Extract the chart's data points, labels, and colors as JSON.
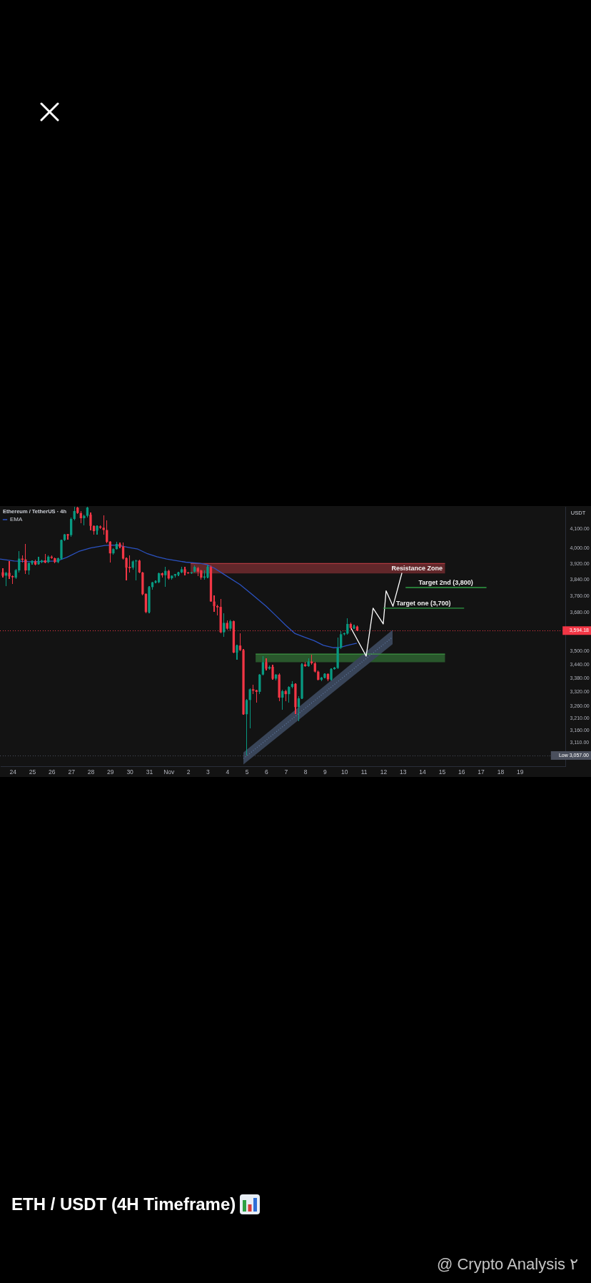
{
  "chart_data": {
    "type": "candlestick",
    "title": "ETH / USDT (4H Timeframe)",
    "subtitle": "Ethereum / TetherUS · 4h",
    "ylabel": "USDT",
    "x": [
      "--10-23T12:00",
      "--10-23T16:00",
      "--10-23T20:00",
      "--10-24T00:00",
      "--10-24T04:00",
      "--10-24T08:00",
      "--10-24T12:00",
      "--10-24T16:00",
      "--10-24T20:00",
      "--10-25T00:00",
      "--10-25T04:00",
      "--10-25T08:00",
      "--10-25T12:00",
      "--10-25T16:00",
      "--10-25T20:00",
      "--10-26T00:00",
      "--10-26T04:00",
      "--10-26T08:00",
      "--10-26T12:00",
      "--10-26T16:00",
      "--10-26T20:00",
      "--10-27T00:00",
      "--10-27T04:00",
      "--10-27T08:00",
      "--10-27T12:00",
      "--10-27T16:00",
      "--10-27T20:00",
      "--10-28T00:00",
      "--10-28T04:00",
      "--10-28T08:00",
      "--10-28T12:00",
      "--10-28T16:00",
      "--10-28T20:00",
      "--10-29T00:00",
      "--10-29T04:00",
      "--10-29T08:00",
      "--10-29T12:00",
      "--10-29T16:00",
      "--10-29T20:00",
      "--10-30T00:00",
      "--10-30T04:00",
      "--10-30T08:00",
      "--10-30T12:00",
      "--10-30T16:00",
      "--10-30T20:00",
      "--10-31T00:00",
      "--10-31T04:00",
      "--10-31T08:00",
      "--10-31T12:00",
      "--10-31T16:00",
      "--10-31T20:00",
      "--11-01T00:00",
      "--11-01T04:00",
      "--11-01T08:00",
      "--11-01T12:00",
      "--11-01T16:00",
      "--11-01T20:00",
      "--11-02T00:00",
      "--11-02T04:00",
      "--11-02T08:00",
      "--11-02T12:00",
      "--11-02T16:00",
      "--11-02T20:00",
      "--11-03T00:00",
      "--11-03T04:00",
      "--11-03T08:00",
      "--11-03T12:00",
      "--11-03T16:00",
      "--11-03T20:00",
      "--11-04T00:00",
      "--11-04T04:00",
      "--11-04T08:00",
      "--11-04T12:00",
      "--11-04T16:00",
      "--11-04T20:00",
      "--11-05T00:00",
      "--11-05T04:00",
      "--11-05T08:00",
      "--11-05T12:00",
      "--11-05T16:00",
      "--11-05T20:00",
      "--11-06T00:00",
      "--11-06T04:00",
      "--11-06T08:00",
      "--11-06T12:00",
      "--11-06T16:00",
      "--11-06T20:00",
      "--11-07T00:00",
      "--11-07T04:00",
      "--11-07T08:00",
      "--11-07T12:00",
      "--11-07T16:00",
      "--11-07T20:00",
      "--11-08T00:00",
      "--11-08T04:00",
      "--11-08T08:00",
      "--11-08T12:00",
      "--11-08T16:00",
      "--11-08T20:00",
      "--11-09T00:00",
      "--11-09T04:00",
      "--11-09T08:00",
      "--11-09T12:00",
      "--11-09T16:00",
      "--11-09T20:00",
      "--11-10T00:00",
      "--11-10T04:00",
      "--11-10T08:00",
      "--11-10T12:00",
      "--11-10T16:00"
    ],
    "ohlc": [
      [
        3876,
        3897,
        3849,
        3859
      ],
      [
        3859,
        3879,
        3808,
        3873
      ],
      [
        3873,
        3933,
        3843,
        3855
      ],
      [
        3857,
        3861,
        3816,
        3851
      ],
      [
        3849,
        3891,
        3843,
        3887
      ],
      [
        3885,
        3984,
        3873,
        3945
      ],
      [
        3945,
        3963,
        3927,
        3939
      ],
      [
        3941,
        4021,
        3867,
        3885
      ],
      [
        3885,
        3927,
        3864,
        3923
      ],
      [
        3923,
        3935,
        3915,
        3931
      ],
      [
        3931,
        3939,
        3910,
        3915
      ],
      [
        3917,
        3955,
        3913,
        3929
      ],
      [
        3927,
        3941,
        3921,
        3935
      ],
      [
        3936,
        3970,
        3920,
        3924
      ],
      [
        3927,
        3960,
        3922,
        3955
      ],
      [
        3955,
        3963,
        3945,
        3949
      ],
      [
        3947,
        3950,
        3922,
        3927
      ],
      [
        3927,
        3950,
        3922,
        3947
      ],
      [
        3945,
        4045,
        3940,
        4041
      ],
      [
        4041,
        4075,
        4035,
        4071
      ],
      [
        4071,
        4075,
        4044,
        4065
      ],
      [
        4067,
        4160,
        4060,
        4153
      ],
      [
        4153,
        4220,
        4145,
        4196
      ],
      [
        4215,
        4220,
        4180,
        4185
      ],
      [
        4185,
        4196,
        4132,
        4157
      ],
      [
        4157,
        4175,
        4119,
        4170
      ],
      [
        4170,
        4220,
        4160,
        4215
      ],
      [
        4176,
        4189,
        4094,
        4116
      ],
      [
        4116,
        4119,
        4069,
        4088
      ],
      [
        4091,
        4118,
        4069,
        4115
      ],
      [
        4113,
        4118,
        4098,
        4106
      ],
      [
        4106,
        4172,
        4069,
        4094
      ],
      [
        4094,
        4144,
        4025,
        4031
      ],
      [
        4033,
        4035,
        3927,
        3972
      ],
      [
        3972,
        3997,
        3965,
        3994
      ],
      [
        3994,
        4031,
        3990,
        4021
      ],
      [
        4021,
        4027,
        4000,
        4006
      ],
      [
        4008,
        4027,
        3939,
        3945
      ],
      [
        3947,
        3950,
        3837,
        3899
      ],
      [
        3903,
        3963,
        3873,
        3897
      ],
      [
        3899,
        3935,
        3890,
        3931
      ],
      [
        3931,
        3940,
        3837,
        3935
      ],
      [
        3935,
        3938,
        3870,
        3875
      ],
      [
        3875,
        3880,
        3760,
        3767
      ],
      [
        3769,
        3772,
        3675,
        3681
      ],
      [
        3681,
        3808,
        3675,
        3802
      ],
      [
        3802,
        3830,
        3790,
        3826
      ],
      [
        3826,
        3834,
        3820,
        3831
      ],
      [
        3826,
        3875,
        3820,
        3871
      ],
      [
        3871,
        3875,
        3850,
        3861
      ],
      [
        3861,
        3903,
        3802,
        3883
      ],
      [
        3883,
        3890,
        3840,
        3845
      ],
      [
        3846,
        3862,
        3840,
        3859
      ],
      [
        3859,
        3869,
        3850,
        3867
      ],
      [
        3864,
        3880,
        3858,
        3875
      ],
      [
        3875,
        3903,
        3870,
        3891
      ],
      [
        3891,
        3903,
        3861,
        3873
      ],
      [
        3875,
        3879,
        3866,
        3871
      ],
      [
        3871,
        3879,
        3866,
        3875
      ],
      [
        3879,
        3909,
        3873,
        3903
      ],
      [
        3897,
        3903,
        3855,
        3879
      ],
      [
        3885,
        3890,
        3840,
        3849
      ],
      [
        3849,
        3885,
        3840,
        3855
      ],
      [
        3851,
        3909,
        3845,
        3903
      ],
      [
        3903,
        3912,
        3730,
        3732
      ],
      [
        3732,
        3763,
        3681,
        3710
      ],
      [
        3710,
        3715,
        3664,
        3704
      ],
      [
        3706,
        3744,
        3580,
        3586
      ],
      [
        3586,
        3675,
        3564,
        3630
      ],
      [
        3630,
        3640,
        3598,
        3603
      ],
      [
        3603,
        3645,
        3595,
        3638
      ],
      [
        3638,
        3642,
        3490,
        3493
      ],
      [
        3493,
        3530,
        3461,
        3525
      ],
      [
        3525,
        3580,
        3499,
        3504
      ],
      [
        3504,
        3510,
        3222,
        3225
      ],
      [
        3225,
        3290,
        3057,
        3285
      ],
      [
        3285,
        3335,
        3166,
        3331
      ],
      [
        3331,
        3351,
        3310,
        3325
      ],
      [
        3327,
        3330,
        3275,
        3320
      ],
      [
        3320,
        3398,
        3310,
        3395
      ],
      [
        3395,
        3477,
        3390,
        3450
      ],
      [
        3450,
        3467,
        3414,
        3421
      ],
      [
        3421,
        3435,
        3415,
        3429
      ],
      [
        3429,
        3440,
        3372,
        3377
      ],
      [
        3377,
        3398,
        3370,
        3395
      ],
      [
        3395,
        3400,
        3280,
        3295
      ],
      [
        3295,
        3328,
        3245,
        3323
      ],
      [
        3323,
        3330,
        3280,
        3310
      ],
      [
        3310,
        3345,
        3275,
        3341
      ],
      [
        3341,
        3366,
        3335,
        3354
      ],
      [
        3354,
        3358,
        3225,
        3255
      ],
      [
        3255,
        3300,
        3195,
        3292
      ],
      [
        3292,
        3445,
        3288,
        3440
      ],
      [
        3440,
        3450,
        3430,
        3432
      ],
      [
        3432,
        3467,
        3428,
        3453
      ],
      [
        3453,
        3484,
        3440,
        3445
      ],
      [
        3445,
        3450,
        3405,
        3408
      ],
      [
        3408,
        3412,
        3368,
        3372
      ],
      [
        3372,
        3385,
        3365,
        3382
      ],
      [
        3382,
        3400,
        3378,
        3398
      ],
      [
        3398,
        3402,
        3366,
        3374
      ],
      [
        3374,
        3422,
        3370,
        3419
      ],
      [
        3419,
        3428,
        3415,
        3426
      ],
      [
        3424,
        3560,
        3420,
        3515
      ],
      [
        3515,
        3591,
        3510,
        3577
      ],
      [
        3577,
        3586,
        3570,
        3582
      ],
      [
        3580,
        3653,
        3575,
        3625
      ],
      [
        3625,
        3630,
        3597,
        3606
      ],
      [
        3606,
        3620,
        3600,
        3613
      ],
      [
        3613,
        3617,
        3590,
        3594.18
      ]
    ],
    "colors": [
      "#f23645",
      "#089981",
      "#f23645",
      "#f23645",
      "#089981",
      "#089981",
      "#f23645",
      "#f23645",
      "#089981",
      "#089981",
      "#f23645",
      "#089981",
      "#089981",
      "#f23645",
      "#089981",
      "#f23645",
      "#f23645",
      "#089981",
      "#089981",
      "#089981",
      "#f23645",
      "#089981",
      "#089981",
      "#f23645",
      "#f23645",
      "#089981",
      "#089981",
      "#f23645",
      "#f23645",
      "#089981",
      "#f23645",
      "#f23645",
      "#f23645",
      "#f23645",
      "#089981",
      "#089981",
      "#f23645",
      "#f23645",
      "#f23645",
      "#f23645",
      "#089981",
      "#089981",
      "#f23645",
      "#f23645",
      "#f23645",
      "#089981",
      "#089981",
      "#089981",
      "#089981",
      "#f23645",
      "#089981",
      "#f23645",
      "#089981",
      "#089981",
      "#089981",
      "#089981",
      "#f23645",
      "#f23645",
      "#089981",
      "#089981",
      "#f23645",
      "#f23645",
      "#089981",
      "#089981",
      "#f23645",
      "#f23645",
      "#f23645",
      "#f23645",
      "#089981",
      "#f23645",
      "#089981",
      "#f23645",
      "#089981",
      "#f23645",
      "#f23645",
      "#089981",
      "#089981",
      "#f23645",
      "#f23645",
      "#089981",
      "#089981",
      "#f23645",
      "#089981",
      "#f23645",
      "#089981",
      "#f23645",
      "#089981",
      "#f23645",
      "#089981",
      "#089981",
      "#f23645",
      "#089981",
      "#089981",
      "#f23645",
      "#089981",
      "#f23645",
      "#f23645",
      "#f23645",
      "#089981",
      "#089981",
      "#f23645",
      "#089981",
      "#089981",
      "#089981",
      "#089981",
      "#089981",
      "#089981",
      "#f23645",
      "#089981",
      "#f23645"
    ],
    "series": [
      {
        "type": "line",
        "color": "#b03a40",
        "x": [
          "--11-02T03:00",
          "--11-15T04:00"
        ],
        "values": [
          3920,
          3920
        ],
        "lower": [
          3870,
          3870
        ],
        "upper": [
          3920,
          3920
        ]
      },
      {
        "type": "line",
        "color": "#3f9a45",
        "x": [
          "--11-05T11:00",
          "--11-15T04:00"
        ],
        "values": [
          3486,
          3486
        ],
        "lower": [
          3450,
          3450
        ],
        "upper": [
          3486,
          3486
        ]
      },
      {
        "type": "line",
        "color": "#5f779f",
        "line_style": "dotted",
        "x": [
          "--11-04T20:00",
          "--11-12T11:30"
        ],
        "values": [
          3045,
          3564
        ],
        "lower": [
          3022,
          3531
        ],
        "upper": [
          3069,
          3597
        ]
      },
      {
        "type": "line",
        "name": "EMA",
        "color": "#2b52c0",
        "x": [
          "--10-23T08:30",
          "--10-24T02:00",
          "--10-24T22:30",
          "--10-26T06:30",
          "--10-26T18:30",
          "--10-27T09:30",
          "--10-28T00:00",
          "--10-28T17:30",
          "--10-29T02:00",
          "--10-29T11:00",
          "--10-29T22:30",
          "--10-30T10:00",
          "--10-30T22:00",
          "--10-31T09:30",
          "--10-31T21:30",
          "--11-01T12:00",
          "--11-01T21:00",
          "--11-02T14:30",
          "--11-02T23:00",
          "--11-03T08:00",
          "--11-03T19:30",
          "--11-04T16:00",
          "--11-05T06:30",
          "--11-06T00:00",
          "--11-06T12:00",
          "--11-07T00:00",
          "--11-07T11:30",
          "--11-07T23:00",
          "--11-08T11:00",
          "--11-08T22:30",
          "--11-09T10:30",
          "--11-09T19:30",
          "--11-10T04:00",
          "--11-10T15:30"
        ],
        "values": [
          3943,
          3933,
          3929,
          3933,
          3951,
          3982,
          4000,
          4013,
          4015,
          4013,
          4003,
          3994,
          3970,
          3955,
          3943,
          3933,
          3927,
          3921,
          3915,
          3897,
          3867,
          3814,
          3767,
          3709,
          3664,
          3619,
          3580,
          3564,
          3547,
          3526,
          3515,
          3517,
          3526,
          3536
        ]
      },
      {
        "type": "line",
        "color": "#ffffff",
        "x": [
          "--11-10T08:00",
          "--11-11T03:00",
          "--11-11T11:30",
          "--11-12T00:00",
          "--11-12T03:30",
          "--11-12T12:00",
          "--11-12T23:00"
        ],
        "values": [
          3608,
          3477,
          3700,
          3625,
          3784,
          3709,
          3873
        ]
      },
      {
        "type": "line",
        "color": "#2f9e44",
        "x": [
          "--11-13T03:30",
          "--11-17T07:00"
        ],
        "values": [
          3800,
          3800
        ]
      },
      {
        "type": "line",
        "color": "#2f9e44",
        "x": [
          "--11-12T00:00",
          "--11-16T03:30"
        ],
        "values": [
          3700,
          3700
        ]
      }
    ],
    "xlim": [
      "--10-23T08:30",
      "--11-21T08:00"
    ],
    "xticks": [
      {
        "value": "--10-24",
        "label": "24"
      },
      {
        "value": "--10-25",
        "label": "25"
      },
      {
        "value": "--10-26",
        "label": "26"
      },
      {
        "value": "--10-27",
        "label": "27"
      },
      {
        "value": "--10-28",
        "label": "28"
      },
      {
        "value": "--10-29",
        "label": "29"
      },
      {
        "value": "--10-30",
        "label": "30"
      },
      {
        "value": "--10-31",
        "label": "31"
      },
      {
        "value": "--11-01",
        "label": "Nov"
      },
      {
        "value": "--11-02",
        "label": "2"
      },
      {
        "value": "--11-03",
        "label": "3"
      },
      {
        "value": "--11-04",
        "label": "4"
      },
      {
        "value": "--11-05",
        "label": "5"
      },
      {
        "value": "--11-06",
        "label": "6"
      },
      {
        "value": "--11-07",
        "label": "7"
      },
      {
        "value": "--11-08",
        "label": "8"
      },
      {
        "value": "--11-09",
        "label": "9"
      },
      {
        "value": "--11-10",
        "label": "10"
      },
      {
        "value": "--11-11",
        "label": "11"
      },
      {
        "value": "--11-12",
        "label": "12"
      },
      {
        "value": "--11-13",
        "label": "13"
      },
      {
        "value": "--11-14",
        "label": "14"
      },
      {
        "value": "--11-15",
        "label": "15"
      },
      {
        "value": "--11-16",
        "label": "16"
      },
      {
        "value": "--11-17",
        "label": "17"
      },
      {
        "value": "--11-18",
        "label": "18"
      },
      {
        "value": "--11-19",
        "label": "19"
      }
    ],
    "ylim": [
      3015,
      4223
    ],
    "yticks": [
      {
        "value": 4100,
        "label": "4,100.00"
      },
      {
        "value": 4000,
        "label": "4,000.00"
      },
      {
        "value": 3920,
        "label": "3,920.00"
      },
      {
        "value": 3840,
        "label": "3,840.00"
      },
      {
        "value": 3760,
        "label": "3,760.00"
      },
      {
        "value": 3680,
        "label": "3,680.00"
      },
      {
        "value": 3500,
        "label": "3,500.00"
      },
      {
        "value": 3440,
        "label": "3,440.00"
      },
      {
        "value": 3380,
        "label": "3,380.00"
      },
      {
        "value": 3320,
        "label": "3,320.00"
      },
      {
        "value": 3260,
        "label": "3,260.00"
      },
      {
        "value": 3210,
        "label": "3,210.00"
      },
      {
        "value": 3160,
        "label": "3,160.00"
      },
      {
        "value": 3110,
        "label": "3,110.00"
      }
    ],
    "log": true,
    "ref_lines": [
      {
        "axis": "y",
        "value": 3594.18,
        "label": "3,594.18",
        "color": "#f23645",
        "line_style": "dotted"
      },
      {
        "axis": "y",
        "value": 3057,
        "label": "Low 3,057.00",
        "color": "#4a4f5c",
        "line_style": "dotted"
      }
    ],
    "annotations": [
      {
        "text": "Resistance Zone",
        "x": "--11-13T17:30",
        "y": 3870
      },
      {
        "text": "Target 2nd (3,800)",
        "x": "--11-15T05:00",
        "y": 3800
      },
      {
        "text": "Target one (3,700)",
        "x": "--11-14T01:30",
        "y": 3700
      },
      "@ Crypto Analysis ٢"
    ],
    "legend": "top left"
  }
}
